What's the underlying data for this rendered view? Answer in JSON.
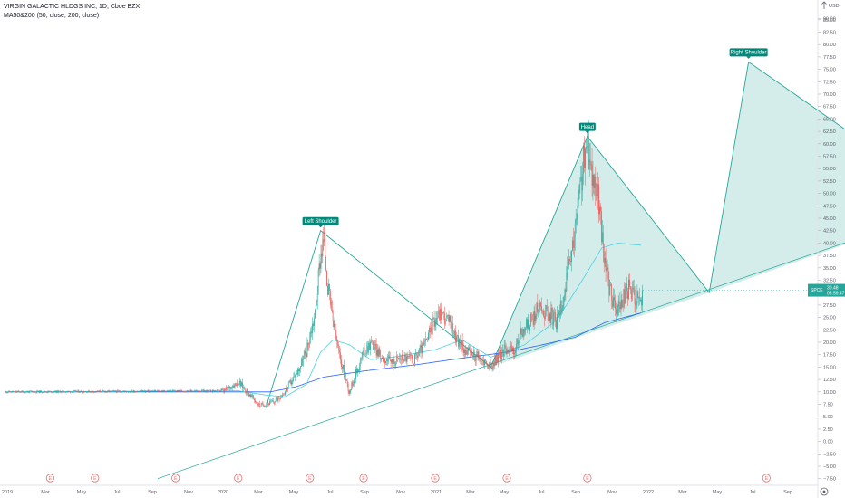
{
  "legend": {
    "symbol_line": "VIRGIN GALACTIC HLDGS INC, 1D, Cboe BZX",
    "indicator_line": "MA50&200 (50, close, 200, close)"
  },
  "chart_data": {
    "type": "candlestick",
    "currency": "USD",
    "y_ticks": [
      "90.00",
      "85.00",
      "82.50",
      "80.00",
      "77.50",
      "75.00",
      "72.50",
      "70.00",
      "67.50",
      "65.00",
      "62.50",
      "60.00",
      "57.50",
      "55.00",
      "52.50",
      "50.00",
      "47.50",
      "45.00",
      "42.50",
      "40.00",
      "37.50",
      "35.00",
      "32.50",
      "30.00",
      "27.50",
      "25.00",
      "22.50",
      "20.00",
      "17.50",
      "15.00",
      "12.50",
      "10.00",
      "7.50",
      "5.00",
      "2.50",
      "0.00",
      "−2.50",
      "−5.00",
      "−7.50"
    ],
    "x_ticks": [
      "2019",
      "Mar",
      "May",
      "Jul",
      "Sep",
      "Nov",
      "2020",
      "Mar",
      "May",
      "Jul",
      "Sep",
      "Nov",
      "2021",
      "Mar",
      "May",
      "Jul",
      "Sep",
      "Nov",
      "2022",
      "Mar",
      "May",
      "Jul",
      "Sep"
    ],
    "last_price": {
      "symbol": "SPCE",
      "price": "30.48",
      "countdown": "03:59:47",
      "value": 30.48
    },
    "earnings_marker": "E",
    "earnings_months": [
      2.5,
      5,
      9.5,
      13,
      17,
      20,
      24,
      28,
      32.5,
      42.5
    ],
    "pattern_labels": {
      "left": "Left Shoulder",
      "head": "Head",
      "right": "Right Shoulder"
    },
    "pattern_points": [
      {
        "m": 14.6,
        "price": 7.5
      },
      {
        "m": 17.6,
        "price": 42.5
      },
      {
        "m": 27.1,
        "price": 15.0
      },
      {
        "m": 32.5,
        "price": 61.5
      },
      {
        "m": 39.3,
        "price": 30.0
      },
      {
        "m": 41.5,
        "price": 76.5
      },
      {
        "m": 53.0,
        "price": 47.5
      }
    ],
    "neckline": [
      {
        "m": 8.5,
        "price": -7.5
      },
      {
        "m": 53.0,
        "price": 47.5
      }
    ],
    "ohlc_anchors": [
      [
        0,
        10.0
      ],
      [
        12.2,
        10.2
      ],
      [
        13.0,
        12.0
      ],
      [
        13.5,
        10.0
      ],
      [
        14.2,
        7.2
      ],
      [
        15.0,
        8.0
      ],
      [
        15.6,
        10.0
      ],
      [
        16.3,
        14.0
      ],
      [
        16.8,
        18.0
      ],
      [
        17.3,
        26.0
      ],
      [
        17.6,
        38.0
      ],
      [
        17.8,
        41.0
      ],
      [
        18.0,
        31.0
      ],
      [
        18.3,
        24.0
      ],
      [
        18.6,
        18.0
      ],
      [
        18.9,
        14.0
      ],
      [
        19.2,
        10.0
      ],
      [
        19.6,
        14.0
      ],
      [
        20.0,
        18.0
      ],
      [
        20.4,
        20.0
      ],
      [
        21.0,
        17.0
      ],
      [
        21.6,
        16.0
      ],
      [
        22.2,
        17.0
      ],
      [
        22.8,
        16.5
      ],
      [
        23.5,
        20.0
      ],
      [
        24.0,
        25.0
      ],
      [
        24.3,
        26.0
      ],
      [
        24.8,
        24.0
      ],
      [
        25.3,
        20.0
      ],
      [
        25.8,
        18.0
      ],
      [
        26.4,
        17.0
      ],
      [
        27.1,
        15.0
      ],
      [
        27.5,
        17.0
      ],
      [
        28.0,
        19.0
      ],
      [
        28.4,
        18.0
      ],
      [
        28.8,
        22.0
      ],
      [
        29.3,
        24.0
      ],
      [
        29.8,
        27.0
      ],
      [
        30.3,
        26.0
      ],
      [
        30.8,
        24.0
      ],
      [
        31.2,
        30.0
      ],
      [
        31.6,
        37.0
      ],
      [
        32.0,
        48.0
      ],
      [
        32.3,
        57.0
      ],
      [
        32.5,
        59.0
      ],
      [
        32.8,
        54.0
      ],
      [
        33.1,
        49.0
      ],
      [
        33.5,
        35.0
      ],
      [
        33.8,
        30.0
      ],
      [
        34.1,
        26.0
      ],
      [
        34.4,
        28.0
      ],
      [
        34.8,
        31.0
      ],
      [
        35.2,
        29.0
      ],
      [
        35.6,
        28.5
      ]
    ],
    "ma50_anchors": [
      [
        0,
        10.0
      ],
      [
        13.0,
        10.2
      ],
      [
        14.5,
        9.4
      ],
      [
        15.6,
        9.0
      ],
      [
        16.8,
        11.5
      ],
      [
        17.6,
        18.0
      ],
      [
        18.3,
        20.5
      ],
      [
        19.2,
        19.5
      ],
      [
        20.4,
        16.5
      ],
      [
        22.0,
        17.2
      ],
      [
        24.0,
        18.5
      ],
      [
        25.5,
        20.5
      ],
      [
        27.1,
        17.0
      ],
      [
        29.0,
        19.5
      ],
      [
        30.8,
        24.5
      ],
      [
        32.3,
        33.0
      ],
      [
        33.3,
        39.0
      ],
      [
        34.2,
        40.0
      ],
      [
        35.6,
        39.5
      ]
    ],
    "ma200_anchors": [
      [
        0,
        10.0
      ],
      [
        14.8,
        10.0
      ],
      [
        16.2,
        11.0
      ],
      [
        17.8,
        13.0
      ],
      [
        20.0,
        14.2
      ],
      [
        23.0,
        15.5
      ],
      [
        25.5,
        16.8
      ],
      [
        28.0,
        18.0
      ],
      [
        30.0,
        19.5
      ],
      [
        31.8,
        21.0
      ],
      [
        33.5,
        24.0
      ],
      [
        35.6,
        26.0
      ]
    ]
  }
}
